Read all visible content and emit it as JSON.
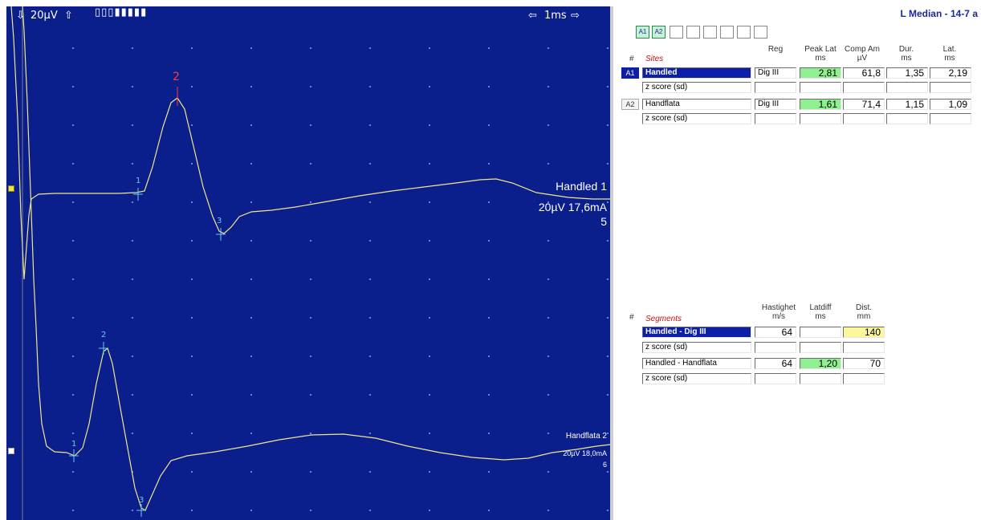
{
  "waveform": {
    "sensitivity_label": "20µV",
    "timebase_label": "1ms",
    "traces": [
      {
        "name_label": "Handled 1",
        "settings_label": "20µV 17,6mA",
        "index_label": "5",
        "markers": [
          "1",
          "2",
          "3"
        ],
        "marker_colors": [
          "#6ec8e6",
          "#ff3a3a",
          "#6ec8e6"
        ]
      },
      {
        "name_label": "Handflata 2",
        "settings_label": "20µV 18,0mA",
        "index_label": "6",
        "markers": [
          "1",
          "2",
          "3"
        ]
      }
    ],
    "colors": {
      "background": "#0a1e8c",
      "trace": "#f0e68c",
      "grid_dots": "#8ca0e6"
    }
  },
  "report": {
    "title": "L Median - 14-7 a",
    "tabs": [
      "A1",
      "A2",
      "",
      "",
      "",
      "",
      "",
      ""
    ],
    "sites_table": {
      "hash": "#",
      "section_label": "Sites",
      "columns": [
        {
          "line1": "Reg",
          "line2": ""
        },
        {
          "line1": "Peak Lat",
          "line2": "ms"
        },
        {
          "line1": "Comp Am",
          "line2": "µV"
        },
        {
          "line1": "Dur.",
          "line2": "ms"
        },
        {
          "line1": "Lat.",
          "line2": "ms"
        }
      ],
      "rows": [
        {
          "badge": "A1",
          "site": "Handled",
          "reg": "Dig III",
          "peak_lat": "2,81",
          "comp_am": "61,8",
          "dur": "1,35",
          "lat": "2,19",
          "z_label": "z score (sd)"
        },
        {
          "badge": "A2",
          "site": "Handflata",
          "reg": "Dig III",
          "peak_lat": "1,61",
          "comp_am": "71,4",
          "dur": "1,15",
          "lat": "1,09",
          "z_label": "z score (sd)"
        }
      ]
    },
    "segments_table": {
      "hash": "#",
      "section_label": "Segments",
      "columns": [
        {
          "line1": "Hastighet",
          "line2": "m/s"
        },
        {
          "line1": "Latdiff",
          "line2": "ms"
        },
        {
          "line1": "Dist.",
          "line2": "mm"
        }
      ],
      "rows": [
        {
          "segment": "Handled - Dig III",
          "velocity": "64",
          "latdiff": "",
          "dist": "140",
          "z_label": "z score (sd)"
        },
        {
          "segment": "Handled - Handflata",
          "velocity": "64",
          "latdiff": "1,20",
          "dist": "70",
          "z_label": "z score (sd)"
        }
      ]
    },
    "colors": {
      "selected": "#0d1fa8",
      "highlight_green": "#8ef08e",
      "highlight_yellow": "#fbf79a",
      "title": "#1a2a9a",
      "section_label": "#cc1111"
    }
  }
}
